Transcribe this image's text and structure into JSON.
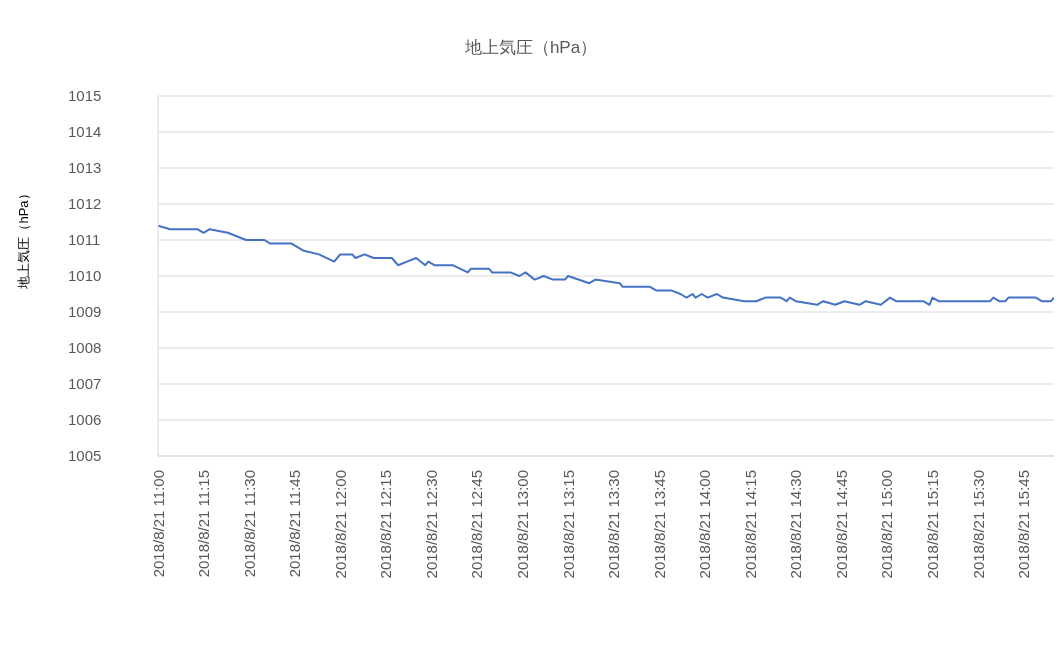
{
  "chart_data": {
    "type": "line",
    "title": "地上気圧（hPa）",
    "ylabel": "地上気圧（hPa）",
    "x": [
      "2018-08-21T11:00",
      "2018-08-21T11:04",
      "2018-08-21T11:13",
      "2018-08-21T11:15",
      "2018-08-21T11:17",
      "2018-08-21T11:23",
      "2018-08-21T11:29",
      "2018-08-21T11:35",
      "2018-08-21T11:37",
      "2018-08-21T11:44",
      "2018-08-21T11:48",
      "2018-08-21T11:53",
      "2018-08-21T11:58",
      "2018-08-21T12:00",
      "2018-08-21T12:04",
      "2018-08-21T12:05",
      "2018-08-21T12:08",
      "2018-08-21T12:11",
      "2018-08-21T12:17",
      "2018-08-21T12:19",
      "2018-08-21T12:22",
      "2018-08-21T12:25",
      "2018-08-21T12:28",
      "2018-08-21T12:29",
      "2018-08-21T12:31",
      "2018-08-21T12:37",
      "2018-08-21T12:42",
      "2018-08-21T12:43",
      "2018-08-21T12:49",
      "2018-08-21T12:50",
      "2018-08-21T12:56",
      "2018-08-21T12:59",
      "2018-08-21T13:01",
      "2018-08-21T13:04",
      "2018-08-21T13:07",
      "2018-08-21T13:10",
      "2018-08-21T13:14",
      "2018-08-21T13:15",
      "2018-08-21T13:22",
      "2018-08-21T13:24",
      "2018-08-21T13:32",
      "2018-08-21T13:33",
      "2018-08-21T13:42",
      "2018-08-21T13:44",
      "2018-08-21T13:49",
      "2018-08-21T13:52",
      "2018-08-21T13:54",
      "2018-08-21T13:56",
      "2018-08-21T13:57",
      "2018-08-21T13:59",
      "2018-08-21T14:01",
      "2018-08-21T14:04",
      "2018-08-21T14:06",
      "2018-08-21T14:13",
      "2018-08-21T14:17",
      "2018-08-21T14:20",
      "2018-08-21T14:25",
      "2018-08-21T14:27",
      "2018-08-21T14:28",
      "2018-08-21T14:30",
      "2018-08-21T14:37",
      "2018-08-21T14:39",
      "2018-08-21T14:43",
      "2018-08-21T14:46",
      "2018-08-21T14:51",
      "2018-08-21T14:53",
      "2018-08-21T14:58",
      "2018-08-21T15:01",
      "2018-08-21T15:03",
      "2018-08-21T15:12",
      "2018-08-21T15:14",
      "2018-08-21T15:15",
      "2018-08-21T15:17",
      "2018-08-21T15:34",
      "2018-08-21T15:35",
      "2018-08-21T15:37",
      "2018-08-21T15:39",
      "2018-08-21T15:40",
      "2018-08-21T15:49",
      "2018-08-21T15:51",
      "2018-08-21T15:54",
      "2018-08-21T15:55"
    ],
    "series": [
      {
        "color": "#4472c4",
        "values": [
          1011.4,
          1011.3,
          1011.3,
          1011.2,
          1011.3,
          1011.2,
          1011.0,
          1011.0,
          1010.9,
          1010.9,
          1010.7,
          1010.6,
          1010.4,
          1010.6,
          1010.6,
          1010.5,
          1010.6,
          1010.5,
          1010.5,
          1010.3,
          1010.4,
          1010.5,
          1010.3,
          1010.4,
          1010.3,
          1010.3,
          1010.1,
          1010.2,
          1010.2,
          1010.1,
          1010.1,
          1010.0,
          1010.1,
          1009.9,
          1010.0,
          1009.9,
          1009.9,
          1010.0,
          1009.8,
          1009.9,
          1009.8,
          1009.7,
          1009.7,
          1009.6,
          1009.6,
          1009.5,
          1009.4,
          1009.5,
          1009.4,
          1009.5,
          1009.4,
          1009.5,
          1009.4,
          1009.3,
          1009.3,
          1009.4,
          1009.4,
          1009.3,
          1009.4,
          1009.3,
          1009.2,
          1009.3,
          1009.2,
          1009.3,
          1009.2,
          1009.3,
          1009.2,
          1009.4,
          1009.3,
          1009.3,
          1009.2,
          1009.4,
          1009.3,
          1009.3,
          1009.4,
          1009.3,
          1009.3,
          1009.4,
          1009.4,
          1009.3,
          1009.3,
          1009.4
        ]
      }
    ],
    "xlim": [
      "2018-08-21T11:00",
      "2018-08-21T15:55"
    ],
    "xticks": [
      {
        "value": "2018-08-21T11:00",
        "label": "2018/8/21 11:00"
      },
      {
        "value": "2018-08-21T11:15",
        "label": "2018/8/21 11:15"
      },
      {
        "value": "2018-08-21T11:30",
        "label": "2018/8/21 11:30"
      },
      {
        "value": "2018-08-21T11:45",
        "label": "2018/8/21 11:45"
      },
      {
        "value": "2018-08-21T12:00",
        "label": "2018/8/21 12:00"
      },
      {
        "value": "2018-08-21T12:15",
        "label": "2018/8/21 12:15"
      },
      {
        "value": "2018-08-21T12:30",
        "label": "2018/8/21 12:30"
      },
      {
        "value": "2018-08-21T12:45",
        "label": "2018/8/21 12:45"
      },
      {
        "value": "2018-08-21T13:00",
        "label": "2018/8/21 13:00"
      },
      {
        "value": "2018-08-21T13:15",
        "label": "2018/8/21 13:15"
      },
      {
        "value": "2018-08-21T13:30",
        "label": "2018/8/21 13:30"
      },
      {
        "value": "2018-08-21T13:45",
        "label": "2018/8/21 13:45"
      },
      {
        "value": "2018-08-21T14:00",
        "label": "2018/8/21 14:00"
      },
      {
        "value": "2018-08-21T14:15",
        "label": "2018/8/21 14:15"
      },
      {
        "value": "2018-08-21T14:30",
        "label": "2018/8/21 14:30"
      },
      {
        "value": "2018-08-21T14:45",
        "label": "2018/8/21 14:45"
      },
      {
        "value": "2018-08-21T15:00",
        "label": "2018/8/21 15:00"
      },
      {
        "value": "2018-08-21T15:15",
        "label": "2018/8/21 15:15"
      },
      {
        "value": "2018-08-21T15:30",
        "label": "2018/8/21 15:30"
      },
      {
        "value": "2018-08-21T15:45",
        "label": "2018/8/21 15:45"
      }
    ],
    "ylim": [
      1005,
      1015
    ],
    "yticks": [
      1005,
      1006,
      1007,
      1008,
      1009,
      1010,
      1011,
      1012,
      1013,
      1014,
      1015
    ],
    "grid": "y",
    "marker": "none",
    "line_style": "solid"
  }
}
